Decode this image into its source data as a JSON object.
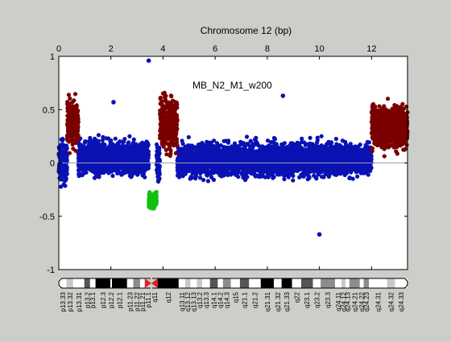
{
  "colors": {
    "figure_bg": "#cbcec9",
    "axes_bg": "#ffffff",
    "gain": "#7a0000",
    "normal": "#0a12b4",
    "loss": "#12c012",
    "zero_line": "#9a9aa6",
    "centromere": "#e02020"
  },
  "chart_data": {
    "type": "scatter",
    "title": "Chromosome 12 (bp)",
    "annotation": "MB_N2_M1_w200",
    "xlabel_position": "top",
    "xlim": [
      0,
      13.38
    ],
    "ylim": [
      -1,
      1
    ],
    "x_ticks": [
      {
        "value": 0,
        "label": "0"
      },
      {
        "value": 2,
        "label": "2"
      },
      {
        "value": 4,
        "label": "4"
      },
      {
        "value": 6,
        "label": "6"
      },
      {
        "value": 8,
        "label": "8"
      },
      {
        "value": 10,
        "label": "10"
      },
      {
        "value": 12,
        "label": "12"
      }
    ],
    "y_ticks": [
      {
        "value": 1,
        "label": "1"
      },
      {
        "value": 0.5,
        "label": "0.5"
      },
      {
        "value": 0,
        "label": "0"
      },
      {
        "value": -0.5,
        "label": "-0.5"
      },
      {
        "value": -1,
        "label": "-1"
      }
    ],
    "grid": false,
    "legend": "none",
    "series": [
      {
        "name": "gain",
        "color": "#7a0000",
        "clouds": [
          {
            "x_range": [
              0.32,
              0.75
            ],
            "mean": 0.38,
            "spread": 0.19,
            "min": 0.0,
            "max": 0.88
          },
          {
            "x_range": [
              3.88,
              4.55
            ],
            "mean": 0.38,
            "spread": 0.2,
            "min": 0.0,
            "max": 0.93
          },
          {
            "x_range": [
              12.0,
              13.38
            ],
            "mean": 0.34,
            "spread": 0.16,
            "min": -0.06,
            "max": 0.93
          }
        ]
      },
      {
        "name": "normal",
        "color": "#0a12b4",
        "clouds": [
          {
            "x_range": [
              0.0,
              0.32
            ],
            "mean": 0.0,
            "spread": 0.16,
            "min": -0.48,
            "max": 0.5
          },
          {
            "x_range": [
              0.75,
              3.45
            ],
            "mean": 0.05,
            "spread": 0.12,
            "min": -0.3,
            "max": 0.57
          },
          {
            "x_range": [
              3.75,
              3.88
            ],
            "mean": 0.0,
            "spread": 0.15,
            "min": -0.3,
            "max": 0.35
          },
          {
            "x_range": [
              4.55,
              12.0
            ],
            "mean": 0.03,
            "spread": 0.12,
            "min": -0.35,
            "max": 0.63
          }
        ],
        "points": [
          {
            "x": 3.45,
            "y": 0.96
          },
          {
            "x": 10.0,
            "y": -0.67
          },
          {
            "x": 8.6,
            "y": 0.63
          },
          {
            "x": 2.1,
            "y": 0.57
          }
        ]
      },
      {
        "name": "loss",
        "color": "#12c012",
        "clouds": [
          {
            "x_range": [
              3.45,
              3.75
            ],
            "mean": -0.35,
            "spread": 0.06,
            "min": -0.56,
            "max": -0.22
          }
        ]
      }
    ],
    "ideogram": {
      "centromere_mb": 3.55,
      "bands": [
        {
          "label": "p13.33",
          "start": 0.0,
          "end": 0.3,
          "stain": "gneg"
        },
        {
          "label": "p13.32",
          "start": 0.3,
          "end": 0.55,
          "stain": "gpos25"
        },
        {
          "label": "p13.31",
          "start": 0.55,
          "end": 0.98,
          "stain": "gneg"
        },
        {
          "label": "p13.2",
          "start": 0.98,
          "end": 1.2,
          "stain": "gpos75"
        },
        {
          "label": "p13.1",
          "start": 1.2,
          "end": 1.41,
          "stain": "gneg"
        },
        {
          "label": "p12.3",
          "start": 1.41,
          "end": 1.98,
          "stain": "gpos100"
        },
        {
          "label": "p12.2",
          "start": 1.98,
          "end": 2.04,
          "stain": "gneg"
        },
        {
          "label": "p12.1",
          "start": 2.04,
          "end": 2.62,
          "stain": "gpos100"
        },
        {
          "label": "p11.23",
          "start": 2.62,
          "end": 2.86,
          "stain": "gneg"
        },
        {
          "label": "p11.22",
          "start": 2.86,
          "end": 3.12,
          "stain": "gpos50"
        },
        {
          "label": "p11.21",
          "start": 3.12,
          "end": 3.3,
          "stain": "gneg"
        },
        {
          "label": "p11.1",
          "start": 3.3,
          "end": 3.55,
          "stain": "acen"
        },
        {
          "label": "q11",
          "start": 3.55,
          "end": 3.8,
          "stain": "acen"
        },
        {
          "label": "q12",
          "start": 3.8,
          "end": 4.6,
          "stain": "gpos100"
        },
        {
          "label": "q13.11",
          "start": 4.6,
          "end": 4.85,
          "stain": "gneg"
        },
        {
          "label": "q13.12",
          "start": 4.85,
          "end": 5.05,
          "stain": "gpos25"
        },
        {
          "label": "q13.13",
          "start": 5.05,
          "end": 5.3,
          "stain": "gneg"
        },
        {
          "label": "q13.2",
          "start": 5.3,
          "end": 5.5,
          "stain": "gpos25"
        },
        {
          "label": "q13.3",
          "start": 5.5,
          "end": 5.8,
          "stain": "gneg"
        },
        {
          "label": "q14.1",
          "start": 5.8,
          "end": 6.1,
          "stain": "gpos75"
        },
        {
          "label": "q14.2",
          "start": 6.1,
          "end": 6.3,
          "stain": "gneg"
        },
        {
          "label": "q14.3",
          "start": 6.3,
          "end": 6.6,
          "stain": "gpos50"
        },
        {
          "label": "q15",
          "start": 6.6,
          "end": 6.95,
          "stain": "gneg"
        },
        {
          "label": "q21.1",
          "start": 6.95,
          "end": 7.3,
          "stain": "gpos75"
        },
        {
          "label": "q21.2",
          "start": 7.3,
          "end": 7.75,
          "stain": "gneg"
        },
        {
          "label": "q21.31",
          "start": 7.75,
          "end": 8.25,
          "stain": "gpos100"
        },
        {
          "label": "q21.32",
          "start": 8.25,
          "end": 8.55,
          "stain": "gneg"
        },
        {
          "label": "q21.33",
          "start": 8.55,
          "end": 8.95,
          "stain": "gpos100"
        },
        {
          "label": "q22",
          "start": 8.95,
          "end": 9.3,
          "stain": "gneg"
        },
        {
          "label": "q23.1",
          "start": 9.3,
          "end": 9.75,
          "stain": "gpos75"
        },
        {
          "label": "q23.2",
          "start": 9.75,
          "end": 10.05,
          "stain": "gneg"
        },
        {
          "label": "q23.3",
          "start": 10.05,
          "end": 10.6,
          "stain": "gpos50"
        },
        {
          "label": "q24.11",
          "start": 10.6,
          "end": 10.85,
          "stain": "gneg"
        },
        {
          "label": "q24.12",
          "start": 10.85,
          "end": 11.0,
          "stain": "gpos25"
        },
        {
          "label": "q24.13",
          "start": 11.0,
          "end": 11.15,
          "stain": "gneg"
        },
        {
          "label": "q24.21",
          "start": 11.15,
          "end": 11.55,
          "stain": "gpos50"
        },
        {
          "label": "q24.22",
          "start": 11.55,
          "end": 11.7,
          "stain": "gneg"
        },
        {
          "label": "q24.23",
          "start": 11.7,
          "end": 11.9,
          "stain": "gpos50"
        },
        {
          "label": "q24.31",
          "start": 11.9,
          "end": 12.6,
          "stain": "gneg"
        },
        {
          "label": "q24.32",
          "start": 12.6,
          "end": 12.9,
          "stain": "gpos25"
        },
        {
          "label": "q24.33",
          "start": 12.9,
          "end": 13.38,
          "stain": "gneg"
        }
      ]
    }
  }
}
